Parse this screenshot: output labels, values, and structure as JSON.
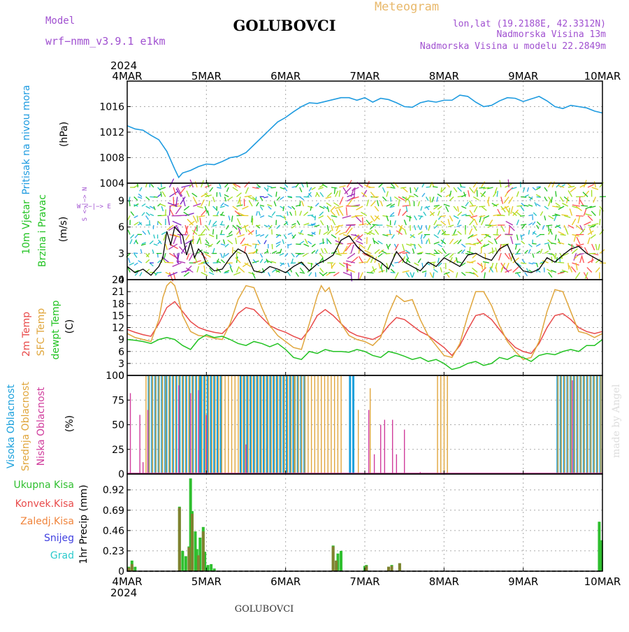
{
  "header": {
    "model_label": "Model",
    "model_name": "wrf−nmm_v3.9.1  e1km",
    "station": "GOLUBOVCI",
    "meteogram_label": "Meteogram",
    "lonlat": "lon,lat (19.2188E, 42.3312N)",
    "elevation": "Nadmorska Visina 13m",
    "model_elevation": "Nadmorska Visina u modelu 22.2849m",
    "year": "2024",
    "watermark": "made by Angel",
    "footer_station": "GOLUBOVCI"
  },
  "colors": {
    "pressure": "#1e9be0",
    "temp2m": "#e84a4a",
    "sfc_temp": "#e0a63c",
    "dewpt": "#22c322",
    "high_cloud": "#1aa0dc",
    "mid_cloud": "#e0a63c",
    "low_cloud": "#d03c9c",
    "precip_total": "#2fbf2f",
    "precip_conv": "#e84a4a",
    "precip_frz": "#f0843c",
    "precip_snow": "#4040e0",
    "precip_hail": "#2ccacc",
    "title_purple": "#a050d0",
    "title_orange": "#e8b86a"
  },
  "chart_data": [
    {
      "type": "line",
      "panel": "pressure",
      "ylabel_title": "Pritisak na nivou mora",
      "ylabel_unit": "(hPa)",
      "x_ticks": [
        "4MAR",
        "5MAR",
        "6MAR",
        "7MAR",
        "8MAR",
        "9MAR",
        "10MAR"
      ],
      "y_ticks": [
        "1004",
        "1008",
        "1012",
        "1016"
      ],
      "ylim": [
        1004,
        1020
      ],
      "xlim": [
        0,
        6
      ],
      "grid": true,
      "series": [
        {
          "key": "pressure",
          "x": [
            0,
            0.1,
            0.2,
            0.3,
            0.4,
            0.5,
            0.6,
            0.65,
            0.7,
            0.8,
            0.9,
            1.0,
            1.1,
            1.2,
            1.3,
            1.4,
            1.5,
            1.6,
            1.7,
            1.8,
            1.9,
            2.0,
            2.1,
            2.2,
            2.3,
            2.4,
            2.5,
            2.6,
            2.7,
            2.8,
            2.9,
            3.0,
            3.1,
            3.2,
            3.3,
            3.4,
            3.5,
            3.6,
            3.7,
            3.8,
            3.9,
            4.0,
            4.1,
            4.2,
            4.3,
            4.4,
            4.5,
            4.6,
            4.7,
            4.8,
            4.9,
            5.0,
            5.1,
            5.2,
            5.3,
            5.4,
            5.5,
            5.6,
            5.7,
            5.8,
            5.9,
            6.0
          ],
          "y": [
            1013,
            1012.5,
            1012.3,
            1011.5,
            1010.8,
            1009.0,
            1006.2,
            1004.9,
            1005.6,
            1006.0,
            1006.6,
            1007.0,
            1006.9,
            1007.4,
            1008.0,
            1008.2,
            1008.8,
            1010.0,
            1011.2,
            1012.4,
            1013.6,
            1014.3,
            1015.2,
            1016.0,
            1016.6,
            1016.5,
            1016.8,
            1017.1,
            1017.4,
            1017.4,
            1017.0,
            1017.4,
            1016.7,
            1017.3,
            1017.1,
            1016.6,
            1016.0,
            1015.9,
            1016.6,
            1016.9,
            1016.7,
            1017.0,
            1017.0,
            1017.8,
            1017.6,
            1016.7,
            1016.0,
            1016.2,
            1016.9,
            1017.4,
            1017.3,
            1016.8,
            1017.2,
            1017.6,
            1016.9,
            1016.0,
            1015.7,
            1016.2,
            1016.0,
            1015.8,
            1015.3,
            1015.0
          ]
        }
      ]
    },
    {
      "type": "line",
      "panel": "wind",
      "ylabel_title_1": "10m Vjetar",
      "ylabel_title_2": "Brzina i Pravac",
      "ylabel_unit": "(m/s)",
      "compass": "W <−|−> E",
      "compass_ns": "S <−|−> N",
      "y_ticks": [
        "0",
        "3",
        "6",
        "9"
      ],
      "ylim": [
        0,
        11
      ],
      "xlim": [
        0,
        6
      ],
      "grid": true,
      "series": [
        {
          "key": "wind_speed",
          "x": [
            0,
            0.1,
            0.2,
            0.3,
            0.4,
            0.45,
            0.5,
            0.55,
            0.6,
            0.65,
            0.7,
            0.75,
            0.8,
            0.85,
            0.9,
            0.95,
            1.0,
            1.1,
            1.2,
            1.3,
            1.4,
            1.5,
            1.6,
            1.7,
            1.8,
            1.9,
            2.0,
            2.1,
            2.2,
            2.3,
            2.4,
            2.5,
            2.6,
            2.7,
            2.8,
            2.9,
            3.0,
            3.1,
            3.2,
            3.3,
            3.4,
            3.5,
            3.6,
            3.7,
            3.8,
            3.9,
            4.0,
            4.1,
            4.2,
            4.3,
            4.4,
            4.5,
            4.6,
            4.7,
            4.8,
            4.9,
            5.0,
            5.1,
            5.2,
            5.3,
            5.4,
            5.5,
            5.6,
            5.7,
            5.8,
            5.9,
            6.0
          ],
          "y": [
            1.5,
            0.8,
            1.2,
            0.5,
            1.5,
            2.5,
            5.5,
            4.0,
            6.0,
            5.5,
            5.0,
            2.8,
            4.3,
            2.5,
            3.5,
            3.0,
            1.8,
            1.0,
            1.2,
            2.5,
            3.5,
            3.0,
            1.0,
            0.8,
            1.5,
            1.2,
            0.8,
            1.5,
            2.0,
            1.0,
            1.8,
            2.2,
            2.8,
            4.5,
            5.0,
            3.8,
            3.0,
            2.5,
            2.0,
            1.2,
            3.2,
            2.0,
            1.5,
            1.0,
            2.0,
            1.5,
            2.5,
            2.0,
            1.5,
            2.8,
            3.0,
            2.5,
            2.2,
            3.5,
            4.0,
            2.0,
            1.0,
            0.8,
            1.2,
            2.5,
            2.0,
            2.8,
            3.5,
            3.8,
            3.0,
            2.5,
            2.0
          ]
        }
      ]
    },
    {
      "type": "line",
      "panel": "temperature",
      "ylabel_1": "2m Temp",
      "ylabel_2": "SFC Temp",
      "ylabel_3": "dewpt Temp",
      "ylabel_unit": "(C)",
      "y_ticks": [
        "0",
        "3",
        "6",
        "9",
        "12",
        "15",
        "18",
        "21",
        "24"
      ],
      "ylim": [
        0,
        24
      ],
      "xlim": [
        0,
        6
      ],
      "grid": true,
      "series": [
        {
          "key": "temp2m",
          "x": [
            0,
            0.1,
            0.2,
            0.3,
            0.4,
            0.5,
            0.6,
            0.7,
            0.8,
            0.9,
            1.0,
            1.1,
            1.2,
            1.3,
            1.4,
            1.5,
            1.6,
            1.7,
            1.8,
            1.9,
            2.0,
            2.1,
            2.2,
            2.3,
            2.4,
            2.5,
            2.6,
            2.7,
            2.8,
            2.9,
            3.0,
            3.1,
            3.2,
            3.3,
            3.4,
            3.5,
            3.6,
            3.7,
            3.8,
            3.9,
            4.0,
            4.1,
            4.2,
            4.3,
            4.4,
            4.5,
            4.6,
            4.7,
            4.8,
            4.9,
            5.0,
            5.1,
            5.2,
            5.3,
            5.4,
            5.5,
            5.6,
            5.7,
            5.8,
            5.9,
            6.0
          ],
          "y": [
            11.5,
            10.8,
            10.2,
            9.8,
            13.0,
            17.0,
            18.5,
            16.0,
            13.5,
            12.0,
            11.3,
            10.8,
            10.5,
            12.5,
            15.5,
            17.0,
            16.5,
            14.5,
            12.5,
            11.5,
            10.8,
            9.8,
            9.0,
            11.5,
            15.0,
            16.5,
            15.0,
            13.0,
            11.0,
            10.0,
            9.5,
            9.0,
            10.0,
            12.5,
            14.5,
            14.0,
            12.5,
            11.0,
            10.0,
            8.5,
            7.0,
            5.0,
            7.5,
            11.5,
            15.0,
            15.5,
            14.0,
            11.5,
            9.0,
            7.0,
            6.0,
            5.5,
            8.0,
            12.0,
            15.0,
            15.5,
            14.0,
            12.0,
            11.0,
            10.5,
            11.0
          ]
        },
        {
          "key": "sfc_temp",
          "x": [
            0,
            0.1,
            0.2,
            0.3,
            0.4,
            0.45,
            0.5,
            0.55,
            0.6,
            0.65,
            0.7,
            0.8,
            0.9,
            1.0,
            1.1,
            1.2,
            1.3,
            1.4,
            1.5,
            1.6,
            1.7,
            1.8,
            1.9,
            2.0,
            2.1,
            2.2,
            2.3,
            2.4,
            2.45,
            2.5,
            2.55,
            2.6,
            2.7,
            2.8,
            2.9,
            3.0,
            3.1,
            3.2,
            3.3,
            3.4,
            3.5,
            3.6,
            3.7,
            3.8,
            3.9,
            4.0,
            4.1,
            4.2,
            4.3,
            4.4,
            4.5,
            4.6,
            4.7,
            4.8,
            4.9,
            5.0,
            5.1,
            5.2,
            5.3,
            5.4,
            5.5,
            5.6,
            5.7,
            5.8,
            5.9,
            6.0
          ],
          "y": [
            10.5,
            9.5,
            9.0,
            8.5,
            14.0,
            19.5,
            22.5,
            23.5,
            22.5,
            19.0,
            15.0,
            11.0,
            10.0,
            9.8,
            9.3,
            9.0,
            13.0,
            19.0,
            22.5,
            22.0,
            17.0,
            12.5,
            10.0,
            8.5,
            7.0,
            6.5,
            13.0,
            20.0,
            22.5,
            21.0,
            22.0,
            19.0,
            13.0,
            10.0,
            9.0,
            8.5,
            7.5,
            9.5,
            15.5,
            20.0,
            18.5,
            19.0,
            14.0,
            10.0,
            7.5,
            5.0,
            4.5,
            8.0,
            15.0,
            21.0,
            21.0,
            17.5,
            12.5,
            8.5,
            6.0,
            4.0,
            4.5,
            8.5,
            16.0,
            21.5,
            21.0,
            16.0,
            11.0,
            10.5,
            9.5,
            10.5
          ]
        },
        {
          "key": "dewpt",
          "x": [
            0,
            0.1,
            0.2,
            0.3,
            0.4,
            0.5,
            0.6,
            0.7,
            0.8,
            0.9,
            1.0,
            1.1,
            1.2,
            1.3,
            1.4,
            1.5,
            1.6,
            1.7,
            1.8,
            1.9,
            2.0,
            2.1,
            2.2,
            2.3,
            2.4,
            2.5,
            2.6,
            2.7,
            2.8,
            2.9,
            3.0,
            3.1,
            3.2,
            3.3,
            3.4,
            3.5,
            3.6,
            3.7,
            3.8,
            3.9,
            4.0,
            4.1,
            4.2,
            4.3,
            4.4,
            4.5,
            4.6,
            4.7,
            4.8,
            4.9,
            5.0,
            5.1,
            5.2,
            5.3,
            5.4,
            5.5,
            5.6,
            5.7,
            5.8,
            5.9,
            6.0
          ],
          "y": [
            9.0,
            8.8,
            8.5,
            8.0,
            9.0,
            9.5,
            9.0,
            7.5,
            6.5,
            9.0,
            10.2,
            9.5,
            9.8,
            9.0,
            8.0,
            7.5,
            8.5,
            8.0,
            7.2,
            8.0,
            6.5,
            4.5,
            4.0,
            6.0,
            5.5,
            6.5,
            6.0,
            6.0,
            5.8,
            6.5,
            6.0,
            5.0,
            4.5,
            6.0,
            5.5,
            4.8,
            4.0,
            4.5,
            3.5,
            4.0,
            3.0,
            1.5,
            2.0,
            3.0,
            3.5,
            2.5,
            3.0,
            4.5,
            4.0,
            5.0,
            4.5,
            3.5,
            5.0,
            5.5,
            5.2,
            6.0,
            6.5,
            6.0,
            7.5,
            7.5,
            9.0
          ]
        }
      ]
    },
    {
      "type": "bar",
      "panel": "clouds",
      "ylabel_1": "Visoka Oblacnost",
      "ylabel_2": "Srednja Oblacnost",
      "ylabel_3": "Niska Oblacnost",
      "ylabel_unit": "(%)",
      "y_ticks": [
        "0",
        "25",
        "50",
        "75",
        "100"
      ],
      "ylim": [
        0,
        100
      ],
      "xlim": [
        0,
        6
      ],
      "grid": true,
      "series": [
        {
          "key": "high_cloud",
          "ranges": [
            [
              0.26,
              0.48,
              100
            ],
            [
              0.48,
              0.92,
              100
            ],
            [
              0.92,
              1.2,
              100
            ],
            [
              1.42,
              2.1,
              100
            ],
            [
              2.1,
              2.25,
              100
            ],
            [
              2.8,
              2.85,
              100
            ],
            [
              5.42,
              6.0,
              100
            ]
          ]
        },
        {
          "key": "mid_cloud",
          "ranges": [
            [
              0.22,
              0.26,
              100
            ],
            [
              0.26,
              2.1,
              100
            ],
            [
              2.1,
              2.7,
              100
            ],
            [
              2.9,
              2.92,
              65
            ],
            [
              3.05,
              3.07,
              87
            ],
            [
              3.9,
              4.05,
              100
            ],
            [
              5.42,
              6.0,
              100
            ]
          ]
        },
        {
          "key": "low_cloud",
          "points": [
            [
              0.04,
              82
            ],
            [
              0.16,
              60
            ],
            [
              0.2,
              12
            ],
            [
              0.26,
              65
            ],
            [
              0.65,
              90
            ],
            [
              0.8,
              82
            ],
            [
              0.9,
              85
            ],
            [
              1.0,
              60
            ],
            [
              1.5,
              30
            ],
            [
              3.05,
              65
            ],
            [
              3.12,
              20
            ],
            [
              3.2,
              50
            ],
            [
              3.25,
              55
            ],
            [
              3.35,
              55
            ],
            [
              3.4,
              20
            ],
            [
              3.5,
              45
            ],
            [
              3.7,
              2
            ],
            [
              5.62,
              95
            ]
          ]
        }
      ]
    },
    {
      "type": "bar",
      "panel": "precipitation",
      "legend": [
        "Ukupna  Kisa",
        "Konvek.Kisa",
        "Zaledj.Kisa",
        "Snijeg",
        "Grad"
      ],
      "ylabel": "1hr Precip (mm)",
      "y_ticks": [
        "0",
        "0.23",
        "0.46",
        "0.69",
        "0.92"
      ],
      "ylim": [
        0,
        1.1
      ],
      "xlim": [
        0,
        6
      ],
      "grid": true,
      "x_ticks": [
        "4MAR",
        "5MAR",
        "6MAR",
        "7MAR",
        "8MAR",
        "9MAR",
        "10MAR"
      ],
      "series": [
        {
          "key": "total",
          "x": [
            0.02,
            0.06,
            0.1,
            0.66,
            0.7,
            0.74,
            0.78,
            0.8,
            0.82,
            0.86,
            0.88,
            0.92,
            0.96,
            0.98,
            1.02,
            1.06,
            1.1,
            2.6,
            2.64,
            2.66,
            2.7,
            3.0,
            3.02,
            3.3,
            3.34,
            3.44,
            5.96,
            5.99
          ],
          "y": [
            0.05,
            0.12,
            0.05,
            0.73,
            0.23,
            0.17,
            0.28,
            1.05,
            0.68,
            0.45,
            0.25,
            0.38,
            0.5,
            0.22,
            0.07,
            0.08,
            0.03,
            0.29,
            0.12,
            0.2,
            0.23,
            0.06,
            0.07,
            0.05,
            0.07,
            0.09,
            0.56,
            0.35
          ]
        },
        {
          "key": "convective",
          "x": [
            0.02,
            0.06,
            0.66,
            0.78,
            0.82,
            0.9,
            0.96,
            2.6,
            2.64,
            3.02,
            3.3,
            3.34,
            3.44
          ],
          "y": [
            0.04,
            0.08,
            0.72,
            0.27,
            0.65,
            0.18,
            0.45,
            0.28,
            0.12,
            0.06,
            0.05,
            0.06,
            0.09
          ]
        }
      ]
    }
  ]
}
